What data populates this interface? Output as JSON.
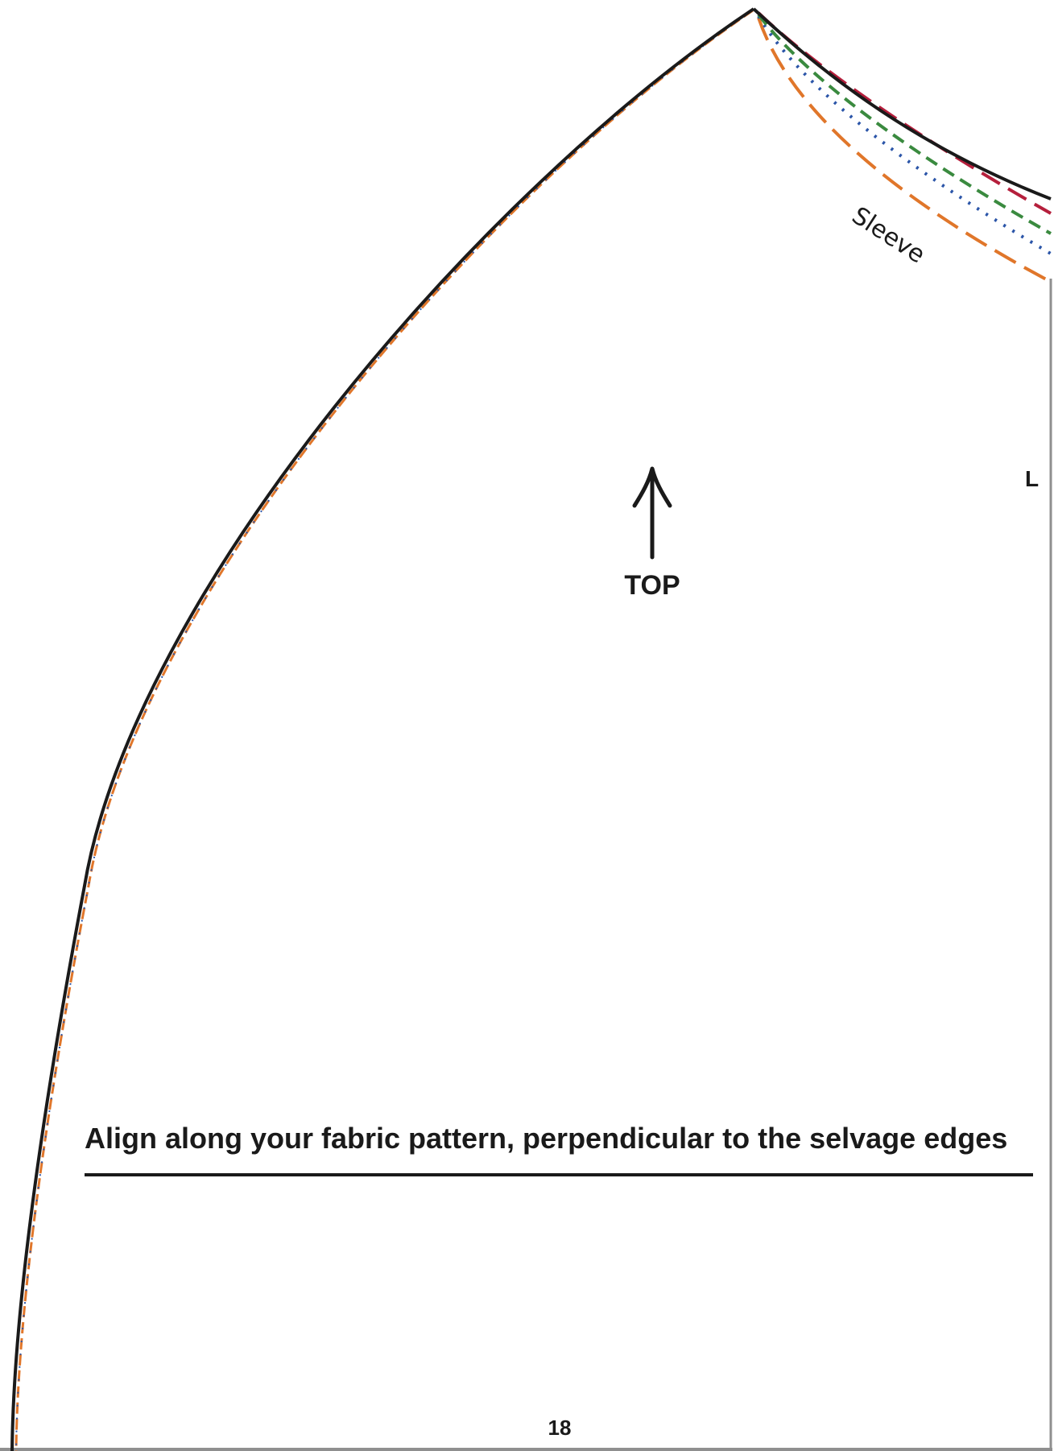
{
  "pattern": {
    "sleeve_label": "Sleeve",
    "grain_label": "TOP",
    "size_label": "L",
    "alignment_instruction": "Align along your fabric pattern, perpendicular to the selvage edges",
    "page_number": "18"
  },
  "size_lines": [
    {
      "name": "outer-cut-line",
      "color": "#1a1a1a",
      "style": "solid"
    },
    {
      "name": "red-size-line",
      "color": "#b51f3c",
      "style": "dashed"
    },
    {
      "name": "green-size-line",
      "color": "#3a8a3f",
      "style": "dashed"
    },
    {
      "name": "blue-size-line",
      "color": "#2b55a8",
      "style": "dotted"
    },
    {
      "name": "orange-size-line",
      "color": "#e0762a",
      "style": "long-dashed"
    }
  ],
  "colors": {
    "outline": "#1a1a1a",
    "frame": "#8f8f8f",
    "red": "#b51f3c",
    "green": "#3a8a3f",
    "blue": "#2b55a8",
    "orange": "#e0762a"
  }
}
